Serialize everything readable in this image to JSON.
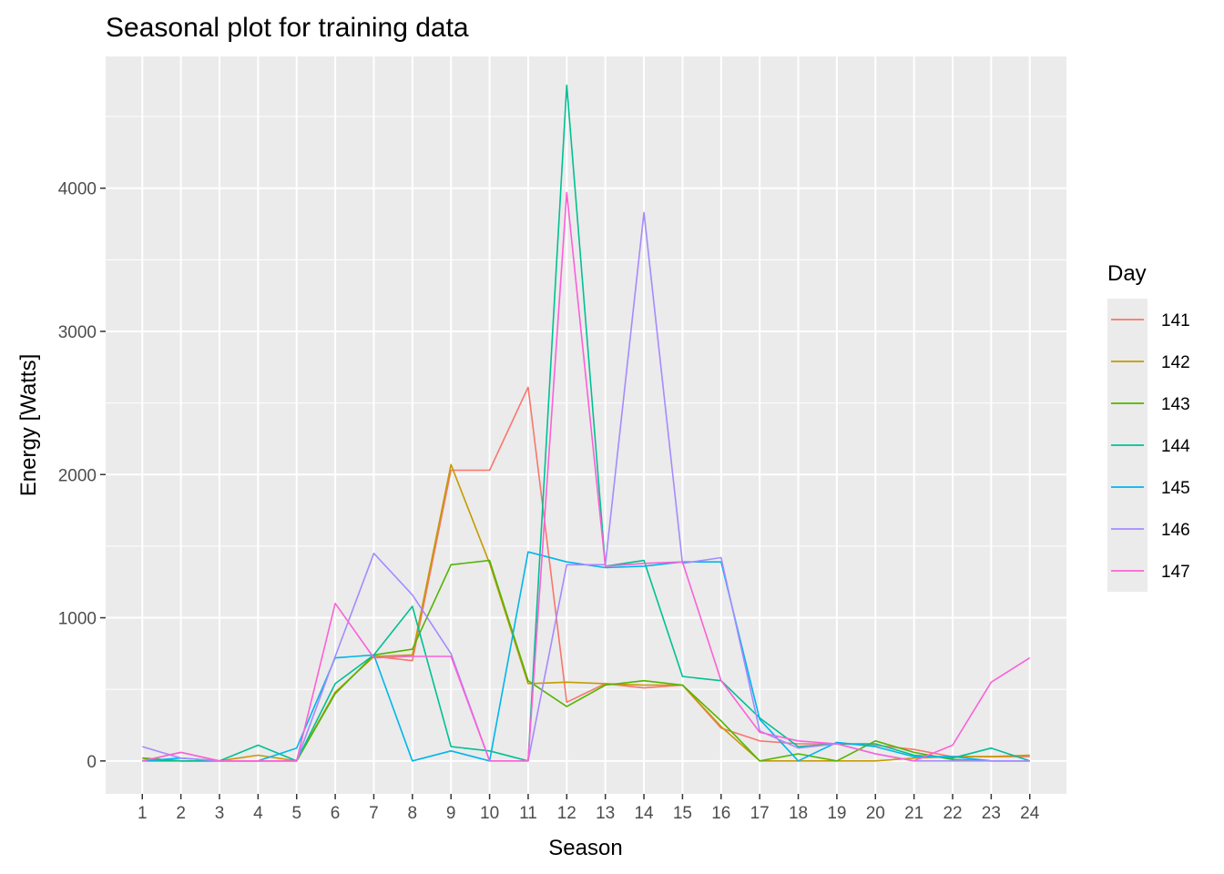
{
  "chart_data": {
    "type": "line",
    "title": "Seasonal plot for training data",
    "xlabel": "Season",
    "ylabel": "Energy [Watts]",
    "x": [
      1,
      2,
      3,
      4,
      5,
      6,
      7,
      8,
      9,
      10,
      11,
      12,
      13,
      14,
      15,
      16,
      17,
      18,
      19,
      20,
      21,
      22,
      23,
      24
    ],
    "x_tick_labels": [
      "1",
      "2",
      "3",
      "4",
      "5",
      "6",
      "7",
      "8",
      "9",
      "10",
      "11",
      "12",
      "13",
      "14",
      "15",
      "16",
      "17",
      "18",
      "19",
      "20",
      "21",
      "22",
      "23",
      "24"
    ],
    "xlim": [
      0.05,
      24.95
    ],
    "ylim": [
      -230,
      4920
    ],
    "y_ticks": [
      0,
      1000,
      2000,
      3000,
      4000
    ],
    "y_tick_labels": [
      "0",
      "1000",
      "2000",
      "3000",
      "4000"
    ],
    "grid": true,
    "background_color": "#ebebeb",
    "legend": {
      "title": "Day",
      "placement": "right"
    },
    "series": [
      {
        "name": "141",
        "color": "#F8766D",
        "values": [
          0,
          60,
          0,
          0,
          0,
          480,
          730,
          700,
          2030,
          2030,
          2610,
          410,
          540,
          510,
          530,
          230,
          140,
          120,
          120,
          110,
          80,
          30,
          30,
          30
        ]
      },
      {
        "name": "142",
        "color": "#C49A00",
        "values": [
          20,
          0,
          0,
          40,
          0,
          480,
          730,
          740,
          2070,
          1380,
          540,
          550,
          540,
          530,
          530,
          240,
          0,
          0,
          0,
          0,
          20,
          30,
          30,
          40
        ]
      },
      {
        "name": "143",
        "color": "#53B400",
        "values": [
          20,
          0,
          0,
          0,
          0,
          470,
          740,
          780,
          1370,
          1400,
          560,
          380,
          530,
          560,
          530,
          280,
          0,
          50,
          0,
          140,
          60,
          10,
          0,
          0
        ]
      },
      {
        "name": "144",
        "color": "#00C094",
        "values": [
          0,
          0,
          0,
          110,
          0,
          540,
          740,
          1080,
          100,
          70,
          0,
          4720,
          1360,
          1400,
          590,
          560,
          300,
          100,
          120,
          120,
          40,
          20,
          90,
          0
        ]
      },
      {
        "name": "145",
        "color": "#00B6EB",
        "values": [
          0,
          20,
          0,
          0,
          90,
          720,
          740,
          0,
          70,
          0,
          1460,
          1390,
          1350,
          1360,
          1390,
          1390,
          290,
          0,
          130,
          100,
          30,
          30,
          0,
          0
        ]
      },
      {
        "name": "146",
        "color": "#A58AFF",
        "values": [
          100,
          20,
          0,
          0,
          0,
          730,
          1450,
          1160,
          750,
          0,
          0,
          1370,
          1370,
          3830,
          1380,
          1420,
          210,
          90,
          120,
          50,
          0,
          0,
          0,
          0
        ]
      },
      {
        "name": "147",
        "color": "#FB61D7",
        "values": [
          0,
          60,
          0,
          0,
          0,
          1100,
          720,
          730,
          730,
          0,
          0,
          3970,
          1360,
          1380,
          1390,
          560,
          200,
          140,
          120,
          50,
          0,
          110,
          550,
          720
        ]
      }
    ]
  }
}
